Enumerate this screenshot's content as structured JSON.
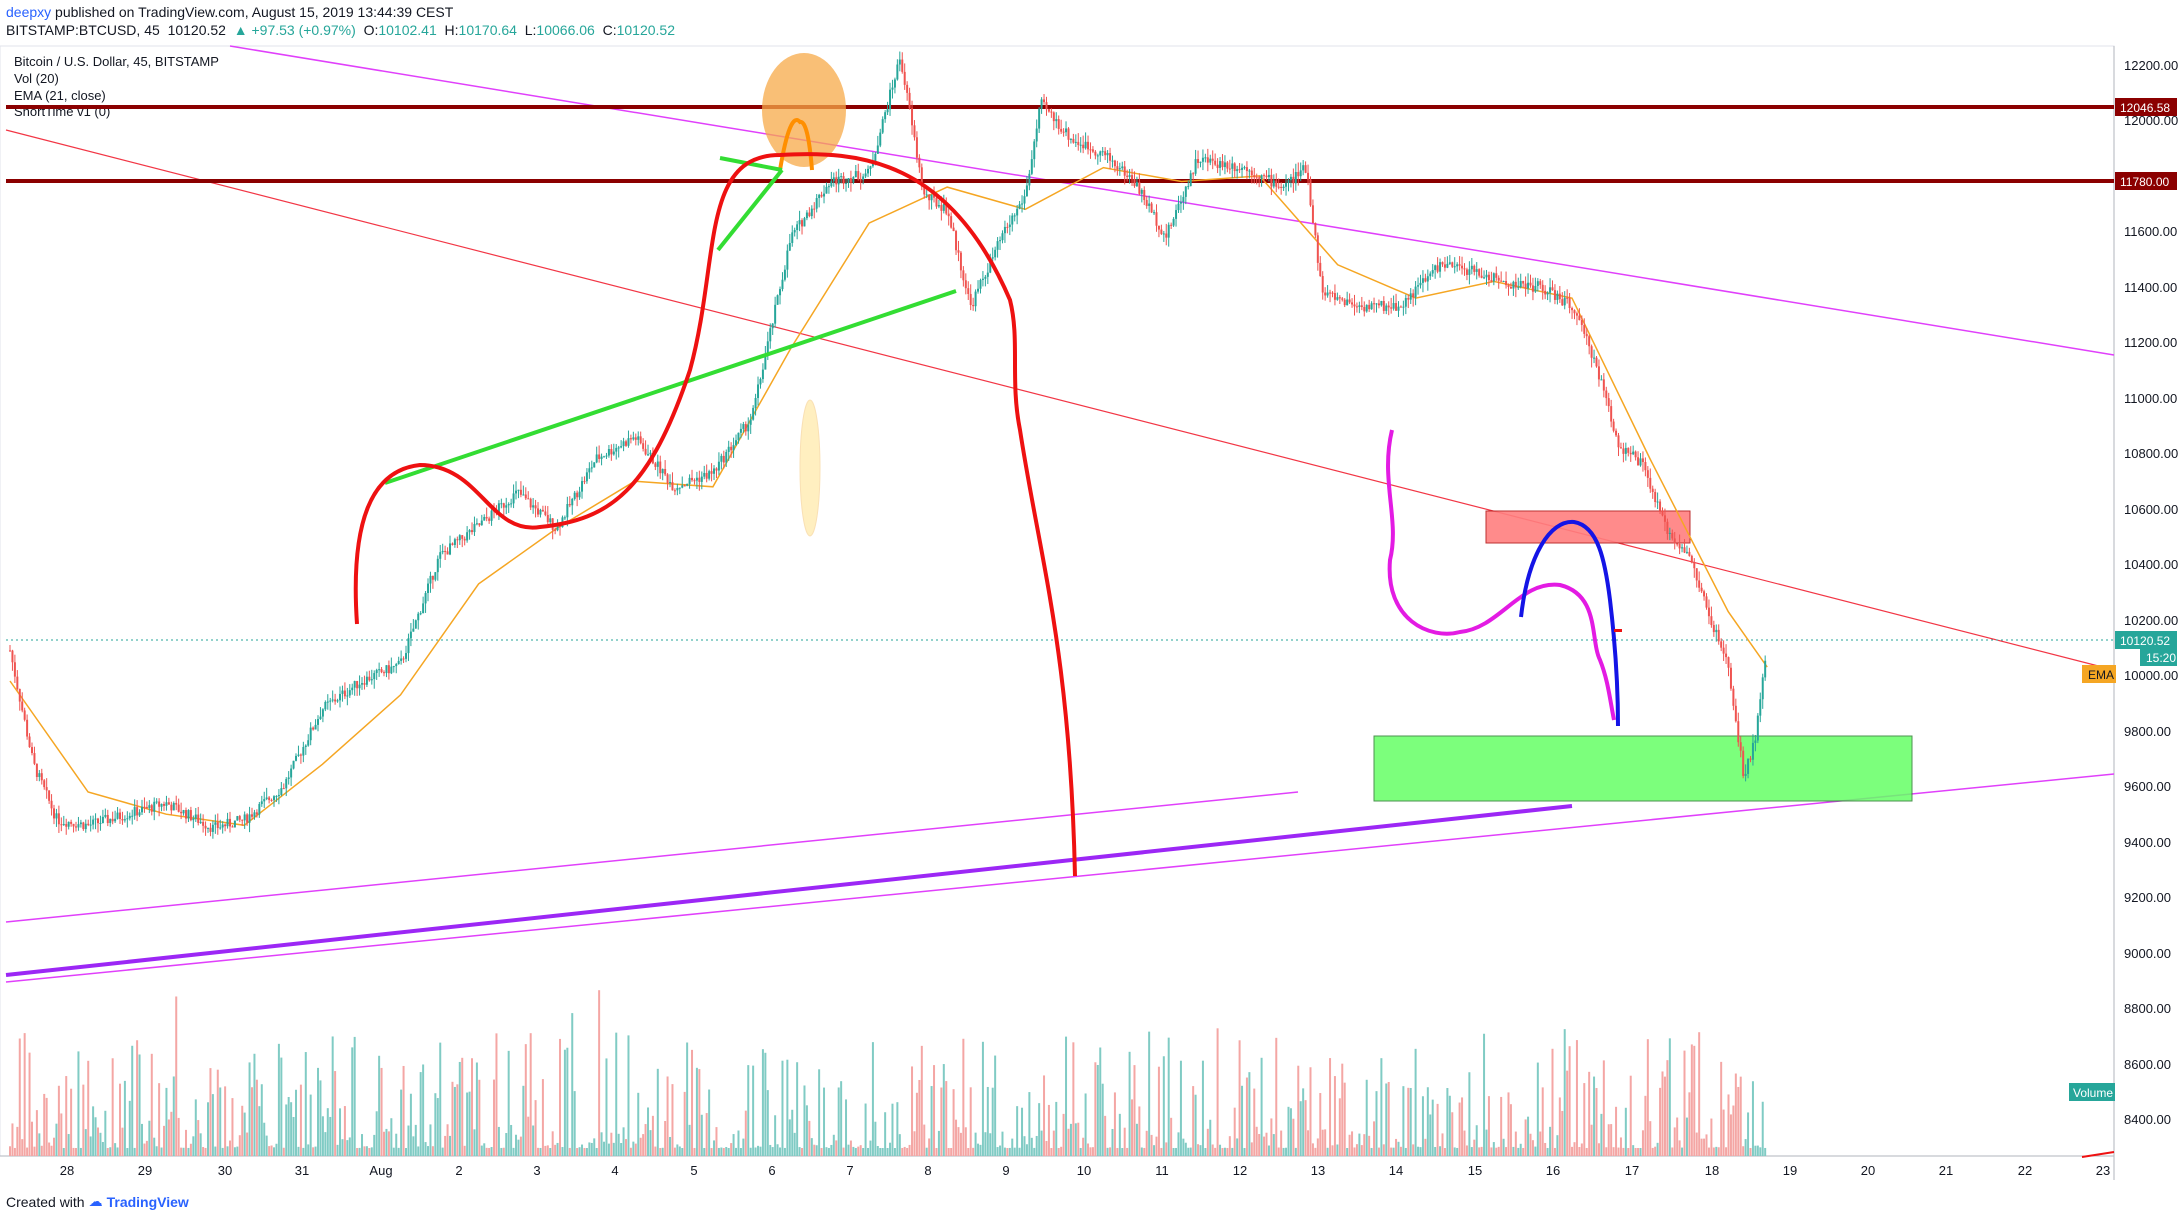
{
  "header": {
    "user": "deepxy",
    "published": "published on TradingView.com, August 15, 2019 13:44:39 CEST",
    "symbol": "BITSTAMP:BTCUSD, 45",
    "last": "10120.52",
    "change": "▲ +97.53 (+0.97%)",
    "o_label": "O:",
    "o_val": "10102.41",
    "h_label": "H:",
    "h_val": "10170.64",
    "l_label": "L:",
    "l_val": "10066.06",
    "c_label": "C:",
    "c_val": "10120.52"
  },
  "legend": {
    "title": "Bitcoin / U.S. Dollar, 45, BITSTAMP",
    "vol": "Vol (20)",
    "ema": "EMA (21, close)",
    "short": "ShortTime v1 (0)"
  },
  "price_axis": {
    "ticks": [
      "12200.00",
      "12000.00",
      "11800.00",
      "11600.00",
      "11400.00",
      "11200.00",
      "11000.00",
      "10800.00",
      "10600.00",
      "10400.00",
      "10200.00",
      "10000.00",
      "9800.00",
      "9600.00",
      "9400.00",
      "9200.00",
      "9000.00",
      "8800.00",
      "8600.00",
      "8400.00"
    ],
    "label_12046": "12046.58",
    "label_11780": "11780.00",
    "label_last": "10120.52",
    "label_timer": "15:20",
    "label_ema": "EMA",
    "label_volume": "Volume"
  },
  "time_axis": {
    "ticks": [
      "28",
      "29",
      "30",
      "31",
      "Aug",
      "2",
      "3",
      "4",
      "5",
      "6",
      "7",
      "8",
      "9",
      "10",
      "11",
      "12",
      "13",
      "14",
      "15",
      "16",
      "17",
      "18",
      "19",
      "20",
      "21",
      "22",
      "23"
    ]
  },
  "footer": {
    "created": "Created with",
    "brand": "TradingView"
  },
  "colors": {
    "up": "#26a69a",
    "down": "#ef5350",
    "level": "#8b0000",
    "ema": "#f5a623",
    "resistance_zone": "#ff7f7f",
    "support_zone": "#66ff66"
  },
  "chart_data": {
    "type": "candlestick",
    "title": "Bitcoin / U.S. Dollar, 45, BITSTAMP",
    "x_range": [
      "Jul 27",
      "Aug 23"
    ],
    "y_range": [
      8300,
      12300
    ],
    "horizontal_levels": [
      12046.58,
      11780.0
    ],
    "resistance_zone": [
      10480,
      10600
    ],
    "support_zone": [
      9540,
      9780
    ],
    "last_price": 10120.52,
    "price_path": [
      {
        "t": 0,
        "p": 10110
      },
      {
        "t": 0.3,
        "p": 9700
      },
      {
        "t": 0.6,
        "p": 9500
      },
      {
        "t": 1,
        "p": 9480
      },
      {
        "t": 1.5,
        "p": 9520
      },
      {
        "t": 2,
        "p": 9560
      },
      {
        "t": 2.6,
        "p": 9470
      },
      {
        "t": 3,
        "p": 9500
      },
      {
        "t": 3.5,
        "p": 9620
      },
      {
        "t": 4,
        "p": 9900
      },
      {
        "t": 4.5,
        "p": 10000
      },
      {
        "t": 5,
        "p": 10060
      },
      {
        "t": 5.5,
        "p": 10450
      },
      {
        "t": 6,
        "p": 10560
      },
      {
        "t": 6.5,
        "p": 10680
      },
      {
        "t": 7,
        "p": 10550
      },
      {
        "t": 7.5,
        "p": 10800
      },
      {
        "t": 8,
        "p": 10880
      },
      {
        "t": 8.5,
        "p": 10700
      },
      {
        "t": 9,
        "p": 10750
      },
      {
        "t": 9.5,
        "p": 10950
      },
      {
        "t": 10,
        "p": 11600
      },
      {
        "t": 10.5,
        "p": 11800
      },
      {
        "t": 11,
        "p": 11830
      },
      {
        "t": 11.4,
        "p": 12250
      },
      {
        "t": 11.7,
        "p": 11750
      },
      {
        "t": 12,
        "p": 11700
      },
      {
        "t": 12.3,
        "p": 11350
      },
      {
        "t": 12.7,
        "p": 11600
      },
      {
        "t": 13,
        "p": 11750
      },
      {
        "t": 13.2,
        "p": 12080
      },
      {
        "t": 13.6,
        "p": 11950
      },
      {
        "t": 14,
        "p": 11900
      },
      {
        "t": 14.4,
        "p": 11800
      },
      {
        "t": 14.8,
        "p": 11600
      },
      {
        "t": 15.2,
        "p": 11880
      },
      {
        "t": 15.8,
        "p": 11850
      },
      {
        "t": 16.3,
        "p": 11780
      },
      {
        "t": 16.6,
        "p": 11850
      },
      {
        "t": 16.8,
        "p": 11400
      },
      {
        "t": 17.3,
        "p": 11350
      },
      {
        "t": 17.8,
        "p": 11350
      },
      {
        "t": 18.3,
        "p": 11500
      },
      {
        "t": 18.7,
        "p": 11480
      },
      {
        "t": 19.2,
        "p": 11430
      },
      {
        "t": 19.6,
        "p": 11420
      },
      {
        "t": 20.0,
        "p": 11350
      },
      {
        "t": 20.3,
        "p": 11150
      },
      {
        "t": 20.6,
        "p": 10850
      },
      {
        "t": 20.9,
        "p": 10780
      },
      {
        "t": 21.2,
        "p": 10550
      },
      {
        "t": 21.5,
        "p": 10450
      },
      {
        "t": 21.8,
        "p": 10200
      },
      {
        "t": 22.0,
        "p": 10050
      },
      {
        "t": 22.2,
        "p": 9650
      },
      {
        "t": 22.35,
        "p": 9800
      },
      {
        "t": 22.5,
        "p": 10120.52
      }
    ],
    "ema_path": [
      {
        "t": 0,
        "p": 10000
      },
      {
        "t": 1,
        "p": 9600
      },
      {
        "t": 2,
        "p": 9520
      },
      {
        "t": 3,
        "p": 9480
      },
      {
        "t": 4,
        "p": 9700
      },
      {
        "t": 5,
        "p": 9950
      },
      {
        "t": 6,
        "p": 10350
      },
      {
        "t": 7,
        "p": 10550
      },
      {
        "t": 8,
        "p": 10720
      },
      {
        "t": 9,
        "p": 10700
      },
      {
        "t": 10,
        "p": 11200
      },
      {
        "t": 11,
        "p": 11650
      },
      {
        "t": 12,
        "p": 11780
      },
      {
        "t": 13,
        "p": 11700
      },
      {
        "t": 14,
        "p": 11850
      },
      {
        "t": 15,
        "p": 11800
      },
      {
        "t": 16,
        "p": 11820
      },
      {
        "t": 17,
        "p": 11500
      },
      {
        "t": 18,
        "p": 11380
      },
      {
        "t": 19,
        "p": 11440
      },
      {
        "t": 20,
        "p": 11380
      },
      {
        "t": 21,
        "p": 10800
      },
      {
        "t": 22,
        "p": 10250
      },
      {
        "t": 22.5,
        "p": 10050
      }
    ]
  }
}
